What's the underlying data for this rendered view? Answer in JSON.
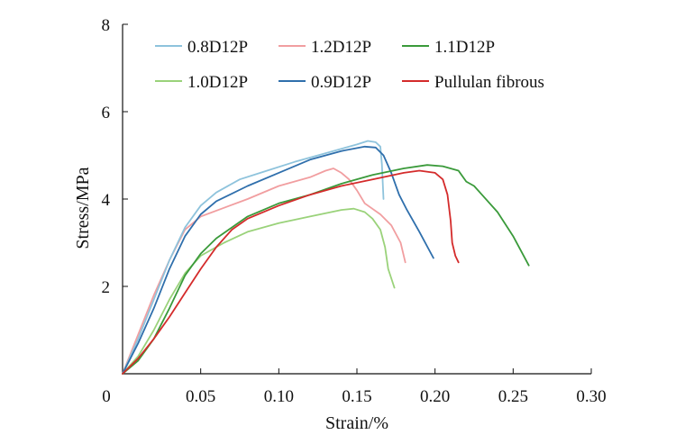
{
  "chart_data": {
    "type": "line",
    "title": "",
    "xlabel": "Strain/%",
    "ylabel": "Stress/MPa",
    "xlim": [
      0,
      0.3
    ],
    "ylim": [
      0,
      8
    ],
    "x_ticks": [
      {
        "value": 0,
        "label": "0"
      },
      {
        "value": 0.05,
        "label": "0.05"
      },
      {
        "value": 0.1,
        "label": "0.10"
      },
      {
        "value": 0.15,
        "label": "0.15"
      },
      {
        "value": 0.2,
        "label": "0.20"
      },
      {
        "value": 0.25,
        "label": "0.25"
      },
      {
        "value": 0.3,
        "label": "0.30"
      }
    ],
    "y_ticks": [
      {
        "value": 2,
        "label": "2"
      },
      {
        "value": 4,
        "label": "4"
      },
      {
        "value": 6,
        "label": "6"
      },
      {
        "value": 8,
        "label": "8"
      }
    ],
    "grid": false,
    "legend_position": "top",
    "series": [
      {
        "name": "0.8D12P",
        "color": "#8ec3dc",
        "points": [
          [
            0,
            0
          ],
          [
            0.01,
            0.8
          ],
          [
            0.02,
            1.7
          ],
          [
            0.03,
            2.6
          ],
          [
            0.04,
            3.35
          ],
          [
            0.05,
            3.85
          ],
          [
            0.06,
            4.15
          ],
          [
            0.075,
            4.45
          ],
          [
            0.09,
            4.62
          ],
          [
            0.11,
            4.85
          ],
          [
            0.13,
            5.05
          ],
          [
            0.15,
            5.25
          ],
          [
            0.157,
            5.33
          ],
          [
            0.162,
            5.3
          ],
          [
            0.165,
            5.2
          ],
          [
            0.166,
            4.8
          ],
          [
            0.167,
            4.0
          ]
        ]
      },
      {
        "name": "1.0D12P",
        "color": "#9ad27a",
        "points": [
          [
            0,
            0
          ],
          [
            0.01,
            0.4
          ],
          [
            0.02,
            1.0
          ],
          [
            0.03,
            1.7
          ],
          [
            0.04,
            2.3
          ],
          [
            0.05,
            2.7
          ],
          [
            0.065,
            3.0
          ],
          [
            0.08,
            3.25
          ],
          [
            0.1,
            3.45
          ],
          [
            0.12,
            3.6
          ],
          [
            0.14,
            3.75
          ],
          [
            0.148,
            3.78
          ],
          [
            0.155,
            3.7
          ],
          [
            0.16,
            3.55
          ],
          [
            0.165,
            3.3
          ],
          [
            0.168,
            2.9
          ],
          [
            0.17,
            2.4
          ],
          [
            0.174,
            1.97
          ]
        ]
      },
      {
        "name": "1.2D12P",
        "color": "#f19ea0",
        "points": [
          [
            0,
            0
          ],
          [
            0.01,
            0.9
          ],
          [
            0.02,
            1.8
          ],
          [
            0.03,
            2.6
          ],
          [
            0.04,
            3.3
          ],
          [
            0.05,
            3.6
          ],
          [
            0.065,
            3.8
          ],
          [
            0.08,
            4.0
          ],
          [
            0.1,
            4.3
          ],
          [
            0.12,
            4.5
          ],
          [
            0.13,
            4.65
          ],
          [
            0.135,
            4.7
          ],
          [
            0.14,
            4.6
          ],
          [
            0.145,
            4.45
          ],
          [
            0.15,
            4.2
          ],
          [
            0.155,
            3.9
          ],
          [
            0.165,
            3.65
          ],
          [
            0.172,
            3.4
          ],
          [
            0.178,
            3.0
          ],
          [
            0.181,
            2.55
          ]
        ]
      },
      {
        "name": "0.9D12P",
        "color": "#2f6fac",
        "points": [
          [
            0,
            0
          ],
          [
            0.01,
            0.7
          ],
          [
            0.02,
            1.5
          ],
          [
            0.03,
            2.4
          ],
          [
            0.04,
            3.15
          ],
          [
            0.05,
            3.65
          ],
          [
            0.06,
            3.95
          ],
          [
            0.08,
            4.3
          ],
          [
            0.1,
            4.6
          ],
          [
            0.12,
            4.9
          ],
          [
            0.14,
            5.1
          ],
          [
            0.155,
            5.2
          ],
          [
            0.162,
            5.18
          ],
          [
            0.167,
            5.0
          ],
          [
            0.172,
            4.6
          ],
          [
            0.177,
            4.1
          ],
          [
            0.182,
            3.75
          ],
          [
            0.19,
            3.25
          ],
          [
            0.199,
            2.65
          ]
        ]
      },
      {
        "name": "1.1D12P",
        "color": "#3a9a3a",
        "points": [
          [
            0,
            0
          ],
          [
            0.01,
            0.3
          ],
          [
            0.02,
            0.8
          ],
          [
            0.03,
            1.5
          ],
          [
            0.04,
            2.25
          ],
          [
            0.05,
            2.75
          ],
          [
            0.06,
            3.1
          ],
          [
            0.08,
            3.6
          ],
          [
            0.1,
            3.9
          ],
          [
            0.12,
            4.1
          ],
          [
            0.14,
            4.35
          ],
          [
            0.16,
            4.55
          ],
          [
            0.18,
            4.7
          ],
          [
            0.195,
            4.78
          ],
          [
            0.205,
            4.75
          ],
          [
            0.215,
            4.65
          ],
          [
            0.22,
            4.4
          ],
          [
            0.225,
            4.3
          ],
          [
            0.23,
            4.1
          ],
          [
            0.24,
            3.7
          ],
          [
            0.25,
            3.15
          ],
          [
            0.26,
            2.48
          ]
        ]
      },
      {
        "name": "Pullulan fibrous",
        "color": "#d42b2b",
        "points": [
          [
            0,
            0
          ],
          [
            0.01,
            0.35
          ],
          [
            0.02,
            0.8
          ],
          [
            0.03,
            1.3
          ],
          [
            0.04,
            1.85
          ],
          [
            0.05,
            2.4
          ],
          [
            0.06,
            2.9
          ],
          [
            0.07,
            3.3
          ],
          [
            0.08,
            3.55
          ],
          [
            0.1,
            3.85
          ],
          [
            0.12,
            4.1
          ],
          [
            0.14,
            4.3
          ],
          [
            0.16,
            4.45
          ],
          [
            0.18,
            4.6
          ],
          [
            0.19,
            4.65
          ],
          [
            0.2,
            4.6
          ],
          [
            0.205,
            4.45
          ],
          [
            0.208,
            4.1
          ],
          [
            0.21,
            3.5
          ],
          [
            0.211,
            3.0
          ],
          [
            0.213,
            2.7
          ],
          [
            0.215,
            2.55
          ]
        ]
      }
    ]
  }
}
